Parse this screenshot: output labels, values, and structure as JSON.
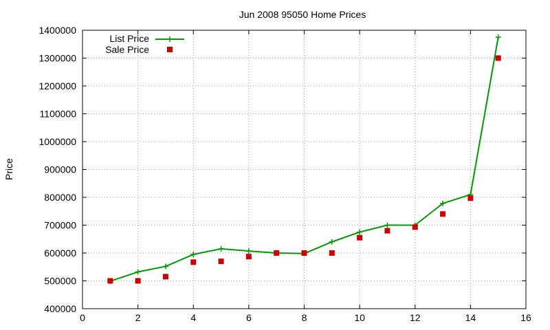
{
  "chart_data": {
    "type": "line",
    "title": "Jun 2008 95050 Home Prices",
    "xlabel": "",
    "ylabel": "Price",
    "xlim": [
      0,
      16
    ],
    "ylim": [
      400000,
      1400000
    ],
    "x_ticks": [
      "0",
      "2",
      "4",
      "6",
      "8",
      "10",
      "12",
      "14",
      "16"
    ],
    "y_ticks": [
      "400000",
      "500000",
      "600000",
      "700000",
      "800000",
      "900000",
      "1000000",
      "1100000",
      "1200000",
      "1300000",
      "1400000"
    ],
    "grid": true,
    "legend_position": "top-left",
    "series": [
      {
        "name": "List Price",
        "style": "line+cross",
        "color": "#009900",
        "x": [
          1,
          2,
          3,
          4,
          5,
          6,
          7,
          8,
          9,
          10,
          11,
          12,
          13,
          14,
          15
        ],
        "values": [
          499000,
          532000,
          552000,
          595000,
          615000,
          607000,
          600000,
          598000,
          640000,
          675000,
          700000,
          700000,
          778000,
          810000,
          1375000
        ]
      },
      {
        "name": "Sale Price",
        "style": "points",
        "color": "#cc0000",
        "x": [
          1,
          2,
          3,
          4,
          5,
          6,
          7,
          8,
          9,
          10,
          11,
          12,
          13,
          14,
          15
        ],
        "values": [
          500000,
          500000,
          515000,
          567000,
          570000,
          587000,
          600000,
          600000,
          600000,
          655000,
          680000,
          693000,
          740000,
          797000,
          1300000
        ]
      }
    ]
  }
}
